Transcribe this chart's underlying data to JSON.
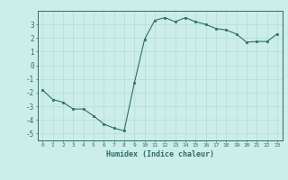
{
  "x": [
    0,
    1,
    2,
    3,
    4,
    5,
    6,
    7,
    8,
    9,
    10,
    11,
    12,
    13,
    14,
    15,
    16,
    17,
    18,
    19,
    20,
    21,
    22,
    23
  ],
  "y": [
    -1.8,
    -2.5,
    -2.7,
    -3.2,
    -3.2,
    -3.7,
    -4.3,
    -4.6,
    -4.8,
    -1.3,
    1.9,
    3.3,
    3.5,
    3.2,
    3.5,
    3.2,
    3.0,
    2.7,
    2.6,
    2.3,
    1.7,
    1.75,
    1.75,
    2.3
  ],
  "xlabel": "Humidex (Indice chaleur)",
  "ylim": [
    -5.5,
    4.0
  ],
  "xlim": [
    -0.5,
    23.5
  ],
  "yticks": [
    -5,
    -4,
    -3,
    -2,
    -1,
    0,
    1,
    2,
    3
  ],
  "xticks": [
    0,
    1,
    2,
    3,
    4,
    5,
    6,
    7,
    8,
    9,
    10,
    11,
    12,
    13,
    14,
    15,
    16,
    17,
    18,
    19,
    20,
    21,
    22,
    23
  ],
  "line_color": "#2d6e6e",
  "marker_color": "#2d6e6e",
  "bg_color": "#cceee8",
  "grid_color": "#b8dbd5",
  "axis_color": "#2d6e6e",
  "tick_color": "#2d6e6e",
  "label_color": "#2d6e6e"
}
